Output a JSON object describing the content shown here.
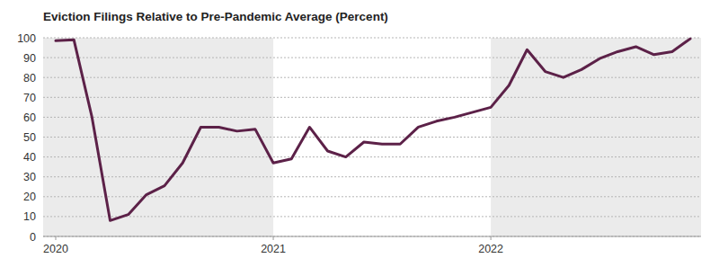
{
  "chart_data": {
    "type": "line",
    "title": "Eviction Filings Relative to Pre-Pandemic Average (Percent)",
    "categories": [
      "2020",
      null,
      null,
      null,
      null,
      null,
      null,
      null,
      null,
      null,
      null,
      null,
      "2021",
      null,
      null,
      null,
      null,
      null,
      null,
      null,
      null,
      null,
      null,
      null,
      "2022",
      null,
      null,
      null,
      null,
      null,
      null,
      null,
      null,
      null,
      null,
      null
    ],
    "values": [
      98.5,
      99,
      60,
      8,
      11,
      21,
      25.5,
      37,
      55,
      55,
      53,
      54,
      37,
      39,
      55,
      43,
      40,
      47.5,
      46.5,
      46.5,
      55,
      58,
      60,
      62.5,
      65,
      76,
      94,
      83,
      80,
      84,
      89.5,
      93,
      95.5,
      91.5,
      93,
      99.5
    ],
    "color": "#5c2148",
    "ylim": [
      0,
      100
    ],
    "yticks": [
      0,
      10,
      20,
      30,
      40,
      50,
      60,
      70,
      80,
      90,
      100
    ],
    "grid": true
  }
}
